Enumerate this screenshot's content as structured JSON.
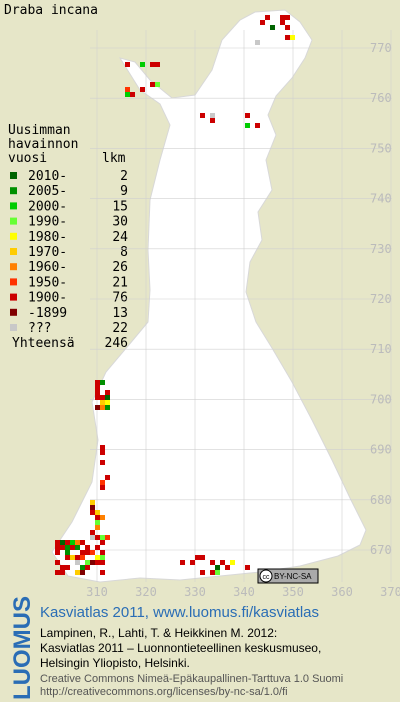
{
  "title": "Draba incana",
  "legend": {
    "heading": [
      "Uusimman",
      "havainnon",
      "vuosi"
    ],
    "count_heading": "lkm",
    "items": [
      {
        "label": "2010-",
        "color": "#006400",
        "count": 2
      },
      {
        "label": "2005-",
        "color": "#009000",
        "count": 9
      },
      {
        "label": "2000-",
        "color": "#00cc00",
        "count": 15
      },
      {
        "label": "1990-",
        "color": "#66ff33",
        "count": 30
      },
      {
        "label": "1980-",
        "color": "#ffff00",
        "count": 24
      },
      {
        "label": "1970-",
        "color": "#ffcc00",
        "count": 8
      },
      {
        "label": "1960-",
        "color": "#ff8000",
        "count": 26
      },
      {
        "label": "1950-",
        "color": "#ff3300",
        "count": 21
      },
      {
        "label": "1900-",
        "color": "#cc0000",
        "count": 76
      },
      {
        "label": "-1899",
        "color": "#800000",
        "count": 13
      },
      {
        "label": "???",
        "color": "#c8c8c8",
        "count": 22
      }
    ],
    "total_label": "Yhteensä",
    "total": 246
  },
  "grid": {
    "y_labels": [
      770,
      760,
      750,
      740,
      730,
      720,
      710,
      700,
      690,
      680,
      670
    ],
    "x_labels": [
      310,
      320,
      330,
      340,
      350,
      360,
      370
    ]
  },
  "badge": {
    "cc": "cc",
    "license": "BY-NC-SA"
  },
  "footer": {
    "logo": "LUOMUS",
    "link": "Kasviatlas 2011, www.luomus.fi/kasviatlas",
    "citation": [
      "Lampinen, R., Lahti, T. & Heikkinen M. 2012:",
      "Kasviatlas 2011 – Luonnontieteellinen keskusmuseo,",
      "Helsingin Yliopisto, Helsinki."
    ],
    "license": [
      "Creative Commons Nimeä-Epäkaupallinen-Tarttuva 1.0 Suomi",
      "http://creativecommons.org/licenses/by-nc-sa/1.0/fi"
    ]
  }
}
